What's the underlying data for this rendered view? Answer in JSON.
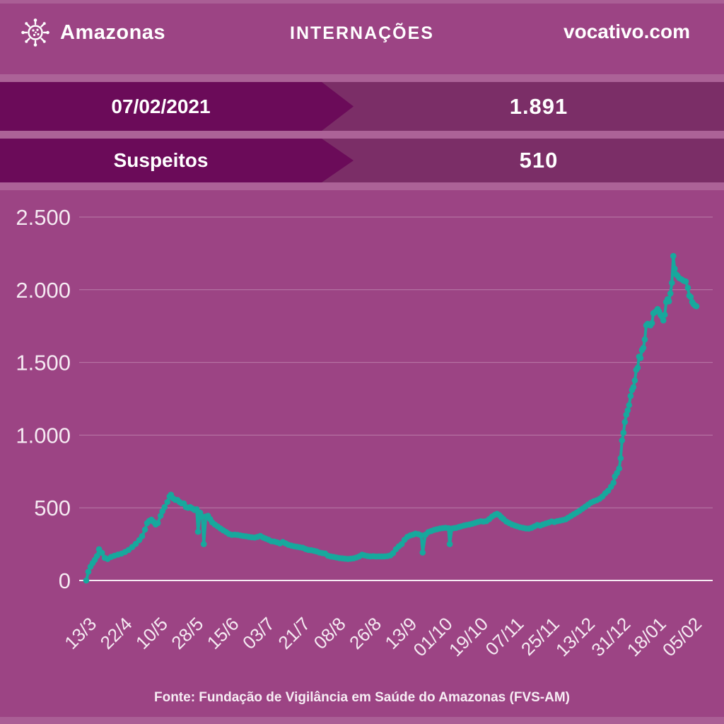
{
  "header": {
    "brand": "Amazonas",
    "title": "INTERNAÇÕES",
    "site": "vocativo.com"
  },
  "stats": [
    {
      "label": "07/02/2021",
      "value": "1.891"
    },
    {
      "label": "Suspeitos",
      "value": "510"
    }
  ],
  "footer": {
    "source": "Fonte: Fundação de Vigilância em Saúde do Amazonas (FVS-AM)"
  },
  "colors": {
    "background": "#9c4484",
    "banner_band": "#7b2e67",
    "banner_arrow": "#6b0b59",
    "line": "#17a89d",
    "text": "#ffffff",
    "axis_text": "#f5eaf2"
  },
  "chart_data": {
    "type": "line",
    "title": "INTERNAÇÕES",
    "ylabel": "",
    "xlabel": "",
    "ylim": [
      0,
      2500
    ],
    "grid": true,
    "legend": "none",
    "y_ticks": [
      0,
      500,
      1000,
      1500,
      2000,
      2500
    ],
    "y_tick_labels": [
      "0",
      "500",
      "1.000",
      "1.500",
      "2.000",
      "2.500"
    ],
    "x_tick_labels": [
      "13/3",
      "22/4",
      "10/5",
      "28/5",
      "15/6",
      "03/7",
      "21/7",
      "08/8",
      "26/8",
      "13/9",
      "01/10",
      "19/10",
      "07/11",
      "25/11",
      "13/12",
      "31/12",
      "18/01",
      "05/02"
    ],
    "series": [
      {
        "name": "internações",
        "points": [
          [
            0,
            0
          ],
          [
            0.06,
            60
          ],
          [
            0.12,
            95
          ],
          [
            0.18,
            120
          ],
          [
            0.24,
            142
          ],
          [
            0.3,
            168
          ],
          [
            0.36,
            215
          ],
          [
            0.44,
            190
          ],
          [
            0.52,
            155
          ],
          [
            0.6,
            148
          ],
          [
            0.7,
            162
          ],
          [
            0.79,
            170
          ],
          [
            0.89,
            178
          ],
          [
            0.99,
            185
          ],
          [
            1.09,
            196
          ],
          [
            1.19,
            210
          ],
          [
            1.29,
            230
          ],
          [
            1.39,
            252
          ],
          [
            1.49,
            278
          ],
          [
            1.57,
            305
          ],
          [
            1.65,
            350
          ],
          [
            1.71,
            395
          ],
          [
            1.77,
            410
          ],
          [
            1.83,
            418
          ],
          [
            1.89,
            403
          ],
          [
            1.95,
            385
          ],
          [
            2.01,
            395
          ],
          [
            2.09,
            445
          ],
          [
            2.14,
            476
          ],
          [
            2.2,
            505
          ],
          [
            2.28,
            540
          ],
          [
            2.34,
            578
          ],
          [
            2.38,
            590
          ],
          [
            2.44,
            565
          ],
          [
            2.5,
            555
          ],
          [
            2.56,
            554
          ],
          [
            2.62,
            540
          ],
          [
            2.68,
            530
          ],
          [
            2.74,
            530
          ],
          [
            2.8,
            505
          ],
          [
            2.86,
            500
          ],
          [
            2.92,
            505
          ],
          [
            2.98,
            495
          ],
          [
            3.04,
            485
          ],
          [
            3.1,
            490
          ],
          [
            3.14,
            335
          ],
          [
            3.2,
            466
          ],
          [
            3.26,
            440
          ],
          [
            3.3,
            250
          ],
          [
            3.36,
            440
          ],
          [
            3.42,
            445
          ],
          [
            3.48,
            422
          ],
          [
            3.54,
            400
          ],
          [
            3.61,
            385
          ],
          [
            3.69,
            372
          ],
          [
            3.77,
            358
          ],
          [
            3.85,
            345
          ],
          [
            3.93,
            333
          ],
          [
            4.01,
            320
          ],
          [
            4.09,
            314
          ],
          [
            4.17,
            315
          ],
          [
            4.25,
            313
          ],
          [
            4.33,
            310
          ],
          [
            4.41,
            306
          ],
          [
            4.49,
            304
          ],
          [
            4.57,
            300
          ],
          [
            4.65,
            297
          ],
          [
            4.73,
            295
          ],
          [
            4.81,
            300
          ],
          [
            4.89,
            306
          ],
          [
            4.97,
            295
          ],
          [
            5.04,
            288
          ],
          [
            5.12,
            280
          ],
          [
            5.2,
            270
          ],
          [
            5.28,
            268
          ],
          [
            5.36,
            262
          ],
          [
            5.44,
            255
          ],
          [
            5.52,
            265
          ],
          [
            5.6,
            255
          ],
          [
            5.68,
            245
          ],
          [
            5.76,
            240
          ],
          [
            5.84,
            235
          ],
          [
            5.92,
            232
          ],
          [
            6,
            228
          ],
          [
            6.08,
            225
          ],
          [
            6.16,
            216
          ],
          [
            6.24,
            210
          ],
          [
            6.32,
            208
          ],
          [
            6.4,
            204
          ],
          [
            6.47,
            200
          ],
          [
            6.55,
            192
          ],
          [
            6.63,
            188
          ],
          [
            6.71,
            186
          ],
          [
            6.79,
            170
          ],
          [
            6.87,
            165
          ],
          [
            6.95,
            162
          ],
          [
            7.03,
            158
          ],
          [
            7.11,
            154
          ],
          [
            7.19,
            152
          ],
          [
            7.27,
            150
          ],
          [
            7.35,
            148
          ],
          [
            7.43,
            150
          ],
          [
            7.51,
            152
          ],
          [
            7.59,
            158
          ],
          [
            7.67,
            166
          ],
          [
            7.75,
            177
          ],
          [
            7.82,
            172
          ],
          [
            7.9,
            168
          ],
          [
            7.98,
            166
          ],
          [
            8.06,
            167
          ],
          [
            8.14,
            165
          ],
          [
            8.22,
            166
          ],
          [
            8.3,
            165
          ],
          [
            8.38,
            166
          ],
          [
            8.46,
            168
          ],
          [
            8.54,
            172
          ],
          [
            8.62,
            188
          ],
          [
            8.7,
            215
          ],
          [
            8.78,
            235
          ],
          [
            8.86,
            250
          ],
          [
            8.94,
            280
          ],
          [
            9.02,
            300
          ],
          [
            9.1,
            310
          ],
          [
            9.18,
            315
          ],
          [
            9.25,
            322
          ],
          [
            9.33,
            318
          ],
          [
            9.41,
            310
          ],
          [
            9.45,
            192
          ],
          [
            9.53,
            315
          ],
          [
            9.61,
            333
          ],
          [
            9.69,
            340
          ],
          [
            9.77,
            348
          ],
          [
            9.85,
            352
          ],
          [
            9.93,
            357
          ],
          [
            10.01,
            360
          ],
          [
            10.09,
            362
          ],
          [
            10.17,
            360
          ],
          [
            10.21,
            250
          ],
          [
            10.27,
            357
          ],
          [
            10.33,
            360
          ],
          [
            10.39,
            362
          ],
          [
            10.47,
            368
          ],
          [
            10.53,
            372
          ],
          [
            10.61,
            378
          ],
          [
            10.68,
            382
          ],
          [
            10.76,
            385
          ],
          [
            10.84,
            390
          ],
          [
            10.92,
            396
          ],
          [
            11,
            402
          ],
          [
            11.08,
            407
          ],
          [
            11.16,
            405
          ],
          [
            11.24,
            408
          ],
          [
            11.32,
            422
          ],
          [
            11.4,
            440
          ],
          [
            11.48,
            452
          ],
          [
            11.54,
            458
          ],
          [
            11.6,
            450
          ],
          [
            11.66,
            435
          ],
          [
            11.72,
            422
          ],
          [
            11.8,
            405
          ],
          [
            11.88,
            395
          ],
          [
            11.96,
            385
          ],
          [
            12.04,
            378
          ],
          [
            12.11,
            372
          ],
          [
            12.19,
            366
          ],
          [
            12.27,
            362
          ],
          [
            12.35,
            358
          ],
          [
            12.43,
            357
          ],
          [
            12.51,
            363
          ],
          [
            12.59,
            372
          ],
          [
            12.67,
            382
          ],
          [
            12.75,
            378
          ],
          [
            12.83,
            385
          ],
          [
            12.91,
            392
          ],
          [
            12.99,
            398
          ],
          [
            13.07,
            406
          ],
          [
            13.15,
            402
          ],
          [
            13.23,
            408
          ],
          [
            13.31,
            412
          ],
          [
            13.39,
            416
          ],
          [
            13.47,
            421
          ],
          [
            13.54,
            432
          ],
          [
            13.62,
            444
          ],
          [
            13.7,
            456
          ],
          [
            13.78,
            468
          ],
          [
            13.86,
            480
          ],
          [
            13.94,
            494
          ],
          [
            14.02,
            508
          ],
          [
            14.1,
            522
          ],
          [
            14.18,
            536
          ],
          [
            14.26,
            545
          ],
          [
            14.34,
            552
          ],
          [
            14.42,
            562
          ],
          [
            14.5,
            578
          ],
          [
            14.58,
            600
          ],
          [
            14.66,
            617
          ],
          [
            14.74,
            645
          ],
          [
            14.81,
            672
          ],
          [
            14.85,
            716
          ],
          [
            14.91,
            740
          ],
          [
            14.97,
            770
          ],
          [
            15.01,
            841
          ],
          [
            15.05,
            963
          ],
          [
            15.09,
            1016
          ],
          [
            15.13,
            1090
          ],
          [
            15.17,
            1140
          ],
          [
            15.21,
            1170
          ],
          [
            15.25,
            1206
          ],
          [
            15.29,
            1269
          ],
          [
            15.33,
            1310
          ],
          [
            15.37,
            1330
          ],
          [
            15.41,
            1376
          ],
          [
            15.45,
            1449
          ],
          [
            15.49,
            1463
          ],
          [
            15.53,
            1540
          ],
          [
            15.57,
            1530
          ],
          [
            15.61,
            1585
          ],
          [
            15.65,
            1600
          ],
          [
            15.69,
            1658
          ],
          [
            15.73,
            1755
          ],
          [
            15.77,
            1765
          ],
          [
            15.81,
            1760
          ],
          [
            15.85,
            1755
          ],
          [
            15.89,
            1770
          ],
          [
            15.93,
            1838
          ],
          [
            15.97,
            1845
          ],
          [
            16.01,
            1853
          ],
          [
            16.05,
            1867
          ],
          [
            16.09,
            1850
          ],
          [
            16.13,
            1828
          ],
          [
            16.17,
            1815
          ],
          [
            16.21,
            1789
          ],
          [
            16.25,
            1828
          ],
          [
            16.29,
            1916
          ],
          [
            16.33,
            1935
          ],
          [
            16.37,
            1920
          ],
          [
            16.41,
            1974
          ],
          [
            16.45,
            2047
          ],
          [
            16.49,
            2232
          ],
          [
            16.53,
            2145
          ],
          [
            16.57,
            2106
          ],
          [
            16.61,
            2096
          ],
          [
            16.66,
            2080
          ],
          [
            16.72,
            2072
          ],
          [
            16.78,
            2062
          ],
          [
            16.84,
            2057
          ],
          [
            16.9,
            2013
          ],
          [
            16.94,
            1959
          ],
          [
            16.98,
            1950
          ],
          [
            17.02,
            1916
          ],
          [
            17.06,
            1901
          ],
          [
            17.1,
            1891
          ],
          [
            17.14,
            1886
          ]
        ]
      }
    ]
  }
}
